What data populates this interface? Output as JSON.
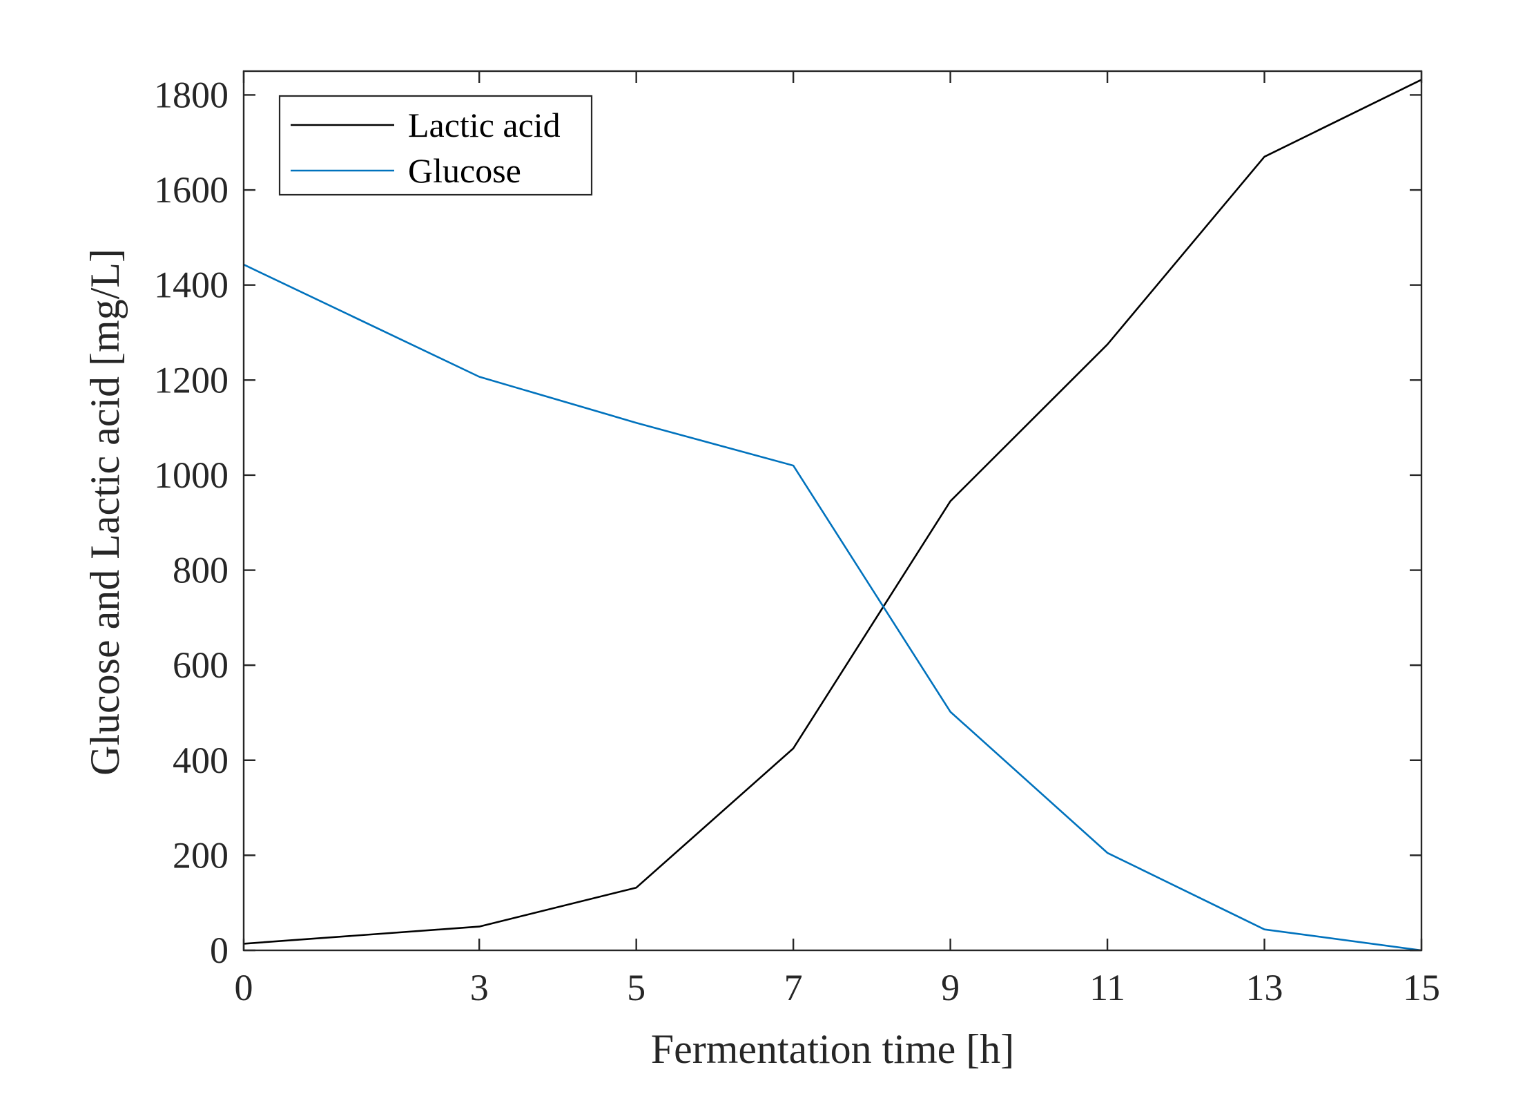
{
  "chart_data": {
    "type": "line",
    "title": "",
    "xlabel": "Fermentation time [h]",
    "ylabel": "Glucose and Lactic acid [mg/L]",
    "xlim": [
      0,
      15
    ],
    "ylim": [
      0,
      1850
    ],
    "xticks": [
      0,
      3,
      5,
      7,
      9,
      11,
      13,
      15
    ],
    "xtick_labels": [
      "0",
      "3",
      "5",
      "7",
      "9",
      "11",
      "13",
      "15"
    ],
    "yticks": [
      0,
      200,
      400,
      600,
      800,
      1000,
      1200,
      1400,
      1600,
      1800
    ],
    "ytick_labels": [
      "0",
      "200",
      "400",
      "600",
      "800",
      "1000",
      "1200",
      "1400",
      "1600",
      "1800"
    ],
    "grid": false,
    "legend_position": "top-left",
    "x": [
      0,
      3,
      5,
      7,
      9,
      11,
      13,
      15
    ],
    "series": [
      {
        "name": "Lactic acid",
        "color": "#000000",
        "values": [
          14,
          50,
          132,
          425,
          945,
          1275,
          1670,
          1832
        ]
      },
      {
        "name": "Glucose",
        "color": "#0072BD",
        "values": [
          1443,
          1207,
          1110,
          1020,
          502,
          205,
          44,
          0
        ]
      }
    ]
  }
}
